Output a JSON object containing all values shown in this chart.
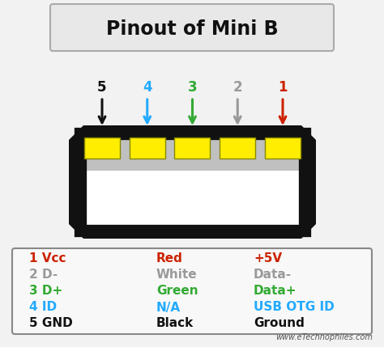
{
  "title": "Pinout of Mini B",
  "background_color": "#f2f2f2",
  "connector_body_color": "#111111",
  "connector_inner_color": "#c0c0c0",
  "connector_cavity_color": "#ffffff",
  "pin_color": "#ffee00",
  "pin_border_color": "#888800",
  "pin_numbers": [
    "5",
    "4",
    "3",
    "2",
    "1"
  ],
  "pin_colors": [
    "#111111",
    "#22aaff",
    "#33aa33",
    "#999999",
    "#cc2200"
  ],
  "table_rows": [
    {
      "col1": "1 Vcc",
      "col2": "Red",
      "col3": "+5V",
      "color": "#cc2200"
    },
    {
      "col1": "2 D-",
      "col2": "White",
      "col3": "Data-",
      "color": "#999999"
    },
    {
      "col1": "3 D+",
      "col2": "Green",
      "col3": "Data+",
      "color": "#33aa33"
    },
    {
      "col1": "4 ID",
      "col2": "N/A",
      "col3": "USB OTG ID",
      "color": "#22aaff"
    },
    {
      "col1": "5 GND",
      "col2": "Black",
      "col3": "Ground",
      "color": "#111111"
    }
  ],
  "watermark": "www.eTechnophiles.com"
}
